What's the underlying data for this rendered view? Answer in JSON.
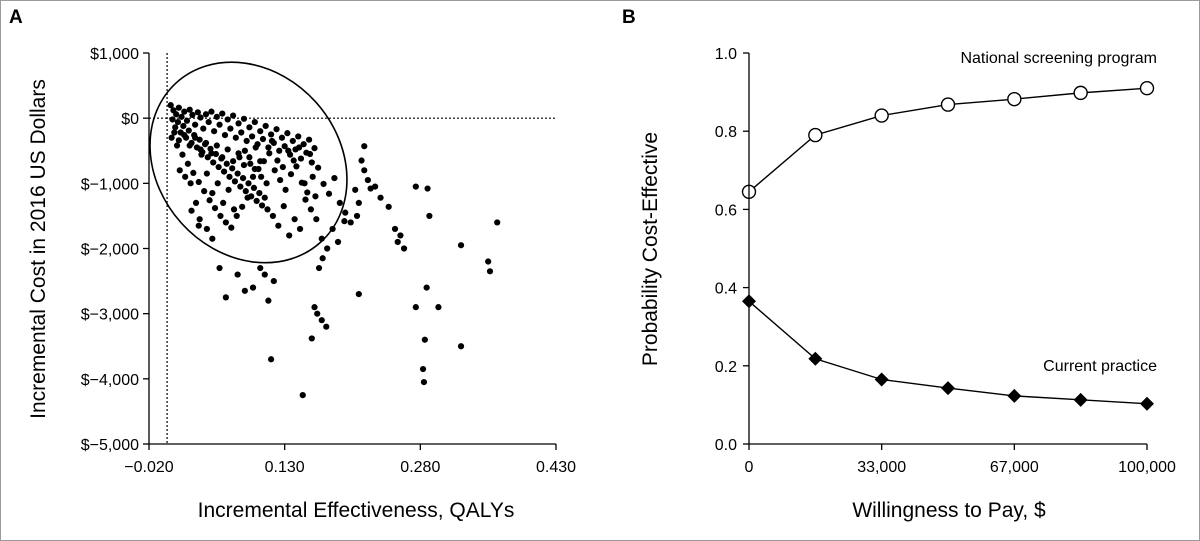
{
  "chart_data": [
    {
      "type": "scatter",
      "panel_label": "A",
      "title": "",
      "xlabel": "Incremental Effectiveness, QALYs",
      "ylabel": "Incremental Cost in 2016 US Dollars",
      "xlim": [
        -0.02,
        0.43
      ],
      "ylim": [
        -5000,
        1000
      ],
      "x_ticks": [
        -0.02,
        0.13,
        0.28,
        0.43
      ],
      "x_tick_labels": [
        "−0.020",
        "0.130",
        "0.280",
        "0.430"
      ],
      "y_ticks": [
        1000,
        0,
        -1000,
        -2000,
        -3000,
        -4000,
        -5000
      ],
      "y_tick_labels": [
        "$1,000",
        "$0",
        "$−1,000",
        "$−2,000",
        "$−3,000",
        "$−4,000",
        "$−5,000"
      ],
      "reference_lines": {
        "x": 0,
        "y": 0,
        "style": "dotted"
      },
      "confidence_ellipse": {
        "center": [
          0.09,
          -680
        ],
        "semi_axis_x": 0.1,
        "semi_axis_y": 1650,
        "note": "tilted 95% ellipse around the point cloud"
      },
      "points": [
        [
          0.004,
          200
        ],
        [
          0.007,
          120
        ],
        [
          0.01,
          60
        ],
        [
          0.013,
          160
        ],
        [
          0.016,
          20
        ],
        [
          0.019,
          100
        ],
        [
          0.022,
          -40
        ],
        [
          0.025,
          130
        ],
        [
          0.028,
          50
        ],
        [
          0.031,
          -100
        ],
        [
          0.034,
          90
        ],
        [
          0.037,
          10
        ],
        [
          0.04,
          -160
        ],
        [
          0.043,
          60
        ],
        [
          0.046,
          -60
        ],
        [
          0.049,
          100
        ],
        [
          0.052,
          -200
        ],
        [
          0.055,
          20
        ],
        [
          0.058,
          -100
        ],
        [
          0.061,
          70
        ],
        [
          0.064,
          -260
        ],
        [
          0.067,
          -20
        ],
        [
          0.07,
          -160
        ],
        [
          0.073,
          40
        ],
        [
          0.076,
          -300
        ],
        [
          0.079,
          -80
        ],
        [
          0.082,
          -220
        ],
        [
          0.085,
          -10
        ],
        [
          0.088,
          -350
        ],
        [
          0.091,
          -140
        ],
        [
          0.094,
          -280
        ],
        [
          0.097,
          -60
        ],
        [
          0.1,
          -400
        ],
        [
          0.103,
          -200
        ],
        [
          0.106,
          -320
        ],
        [
          0.109,
          -120
        ],
        [
          0.112,
          -450
        ],
        [
          0.115,
          -250
        ],
        [
          0.118,
          -380
        ],
        [
          0.121,
          -170
        ],
        [
          0.124,
          -500
        ],
        [
          0.127,
          -300
        ],
        [
          0.13,
          -430
        ],
        [
          0.133,
          -230
        ],
        [
          0.136,
          -560
        ],
        [
          0.139,
          -350
        ],
        [
          0.142,
          -480
        ],
        [
          0.145,
          -280
        ],
        [
          0.148,
          -620
        ],
        [
          0.151,
          -400
        ],
        [
          0.154,
          -530
        ],
        [
          0.157,
          -330
        ],
        [
          0.16,
          -680
        ],
        [
          0.163,
          -460
        ],
        [
          0.006,
          -20
        ],
        [
          0.009,
          -140
        ],
        [
          0.012,
          -60
        ],
        [
          0.015,
          -220
        ],
        [
          0.018,
          -120
        ],
        [
          0.021,
          -300
        ],
        [
          0.024,
          -190
        ],
        [
          0.027,
          -380
        ],
        [
          0.03,
          -260
        ],
        [
          0.033,
          -450
        ],
        [
          0.036,
          -330
        ],
        [
          0.039,
          -520
        ],
        [
          0.042,
          -400
        ],
        [
          0.045,
          -600
        ],
        [
          0.048,
          -470
        ],
        [
          0.051,
          -680
        ],
        [
          0.054,
          -550
        ],
        [
          0.057,
          -750
        ],
        [
          0.06,
          -620
        ],
        [
          0.063,
          -820
        ],
        [
          0.066,
          -700
        ],
        [
          0.069,
          -900
        ],
        [
          0.072,
          -770
        ],
        [
          0.075,
          -970
        ],
        [
          0.078,
          -850
        ],
        [
          0.081,
          -1050
        ],
        [
          0.084,
          -920
        ],
        [
          0.087,
          -1120
        ],
        [
          0.09,
          -1000
        ],
        [
          0.093,
          -1200
        ],
        [
          0.096,
          -1070
        ],
        [
          0.099,
          -1270
        ],
        [
          0.102,
          -1150
        ],
        [
          0.105,
          -1340
        ],
        [
          0.108,
          -1220
        ],
        [
          0.111,
          -1400
        ],
        [
          0.011,
          -420
        ],
        [
          0.017,
          -560
        ],
        [
          0.023,
          -700
        ],
        [
          0.029,
          -840
        ],
        [
          0.035,
          -980
        ],
        [
          0.041,
          -1120
        ],
        [
          0.047,
          -1260
        ],
        [
          0.053,
          -1380
        ],
        [
          0.059,
          -1500
        ],
        [
          0.065,
          -1600
        ],
        [
          0.071,
          -1680
        ],
        [
          0.077,
          -1500
        ],
        [
          0.083,
          -1360
        ],
        [
          0.089,
          -1220
        ],
        [
          0.095,
          -900
        ],
        [
          0.101,
          -780
        ],
        [
          0.107,
          -660
        ],
        [
          0.113,
          -540
        ],
        [
          0.119,
          -800
        ],
        [
          0.125,
          -950
        ],
        [
          0.131,
          -1100
        ],
        [
          0.137,
          -860
        ],
        [
          0.143,
          -740
        ],
        [
          0.149,
          -990
        ],
        [
          0.155,
          -1140
        ],
        [
          0.161,
          -900
        ],
        [
          0.167,
          -760
        ],
        [
          0.173,
          -1010
        ],
        [
          0.179,
          -1160
        ],
        [
          0.185,
          -920
        ],
        [
          0.191,
          -1300
        ],
        [
          0.197,
          -1450
        ],
        [
          0.203,
          -1600
        ],
        [
          0.117,
          -1500
        ],
        [
          0.123,
          -1650
        ],
        [
          0.129,
          -1350
        ],
        [
          0.135,
          -1800
        ],
        [
          0.141,
          -1550
        ],
        [
          0.147,
          -1700
        ],
        [
          0.153,
          -1250
        ],
        [
          0.159,
          -1400
        ],
        [
          0.165,
          -1550
        ],
        [
          0.171,
          -1850
        ],
        [
          0.177,
          -2000
        ],
        [
          0.183,
          -1700
        ],
        [
          0.189,
          -1900
        ],
        [
          0.014,
          -800
        ],
        [
          0.02,
          -900
        ],
        [
          0.026,
          -1000
        ],
        [
          0.032,
          -1300
        ],
        [
          0.038,
          -560
        ],
        [
          0.044,
          -850
        ],
        [
          0.05,
          -1150
        ],
        [
          0.056,
          -1000
        ],
        [
          0.062,
          -1300
        ],
        [
          0.068,
          -1100
        ],
        [
          0.074,
          -1400
        ],
        [
          0.08,
          -600
        ],
        [
          0.086,
          -500
        ],
        [
          0.092,
          -700
        ],
        [
          0.098,
          -450
        ],
        [
          0.104,
          -900
        ],
        [
          0.11,
          -1000
        ],
        [
          0.116,
          -350
        ],
        [
          0.122,
          -650
        ],
        [
          0.128,
          -750
        ],
        [
          0.134,
          -500
        ],
        [
          0.14,
          -650
        ],
        [
          0.146,
          -450
        ],
        [
          0.152,
          -1000
        ],
        [
          0.158,
          -550
        ],
        [
          0.164,
          -1200
        ],
        [
          0.005,
          -300
        ],
        [
          0.008,
          -220
        ],
        [
          0.013,
          -340
        ],
        [
          0.019,
          -260
        ],
        [
          0.025,
          -420
        ],
        [
          0.031,
          -300
        ],
        [
          0.037,
          -480
        ],
        [
          0.043,
          -380
        ],
        [
          0.049,
          -540
        ],
        [
          0.055,
          -420
        ],
        [
          0.061,
          -600
        ],
        [
          0.067,
          -480
        ],
        [
          0.073,
          -660
        ],
        [
          0.079,
          -540
        ],
        [
          0.085,
          -720
        ],
        [
          0.091,
          -600
        ],
        [
          0.097,
          -780
        ],
        [
          0.103,
          -660
        ],
        [
          0.218,
          -430
        ],
        [
          0.215,
          -650
        ],
        [
          0.218,
          -800
        ],
        [
          0.222,
          -950
        ],
        [
          0.225,
          -1080
        ],
        [
          0.23,
          -1050
        ],
        [
          0.236,
          -1220
        ],
        [
          0.245,
          -1360
        ],
        [
          0.252,
          -1700
        ],
        [
          0.255,
          -1900
        ],
        [
          0.262,
          -2000
        ],
        [
          0.258,
          -1800
        ],
        [
          0.275,
          -1050
        ],
        [
          0.288,
          -1080
        ],
        [
          0.29,
          -1500
        ],
        [
          0.275,
          -2900
        ],
        [
          0.285,
          -3400
        ],
        [
          0.287,
          -2600
        ],
        [
          0.283,
          -3850
        ],
        [
          0.284,
          -4050
        ],
        [
          0.3,
          -2900
        ],
        [
          0.325,
          -1950
        ],
        [
          0.325,
          -3500
        ],
        [
          0.355,
          -2200
        ],
        [
          0.357,
          -2350
        ],
        [
          0.365,
          -1600
        ],
        [
          0.208,
          -1100
        ],
        [
          0.212,
          -1300
        ],
        [
          0.21,
          -1500
        ],
        [
          0.196,
          -1580
        ],
        [
          0.212,
          -2700
        ],
        [
          0.168,
          -2300
        ],
        [
          0.172,
          -2150
        ],
        [
          0.163,
          -2900
        ],
        [
          0.166,
          -3000
        ],
        [
          0.171,
          -3100
        ],
        [
          0.176,
          -3200
        ],
        [
          0.16,
          -3380
        ],
        [
          0.15,
          -4250
        ],
        [
          0.115,
          -3700
        ],
        [
          0.112,
          -2800
        ],
        [
          0.118,
          -2500
        ],
        [
          0.108,
          -2400
        ],
        [
          0.103,
          -2300
        ],
        [
          0.095,
          -2600
        ],
        [
          0.086,
          -2650
        ],
        [
          0.078,
          -2400
        ],
        [
          0.065,
          -2750
        ],
        [
          0.058,
          -2300
        ],
        [
          0.05,
          -1850
        ],
        [
          0.044,
          -1700
        ],
        [
          0.036,
          -1550
        ],
        [
          0.027,
          -1420
        ],
        [
          0.035,
          -1650
        ]
      ]
    },
    {
      "type": "line",
      "panel_label": "B",
      "title": "",
      "xlabel": "Willingness to Pay, $",
      "ylabel": "Probability Cost-Effective",
      "xlim": [
        0,
        100000
      ],
      "ylim": [
        0,
        1.0
      ],
      "x_ticks": [
        0,
        33333,
        66667,
        100000
      ],
      "x_tick_labels": [
        "0",
        "33,000",
        "67,000",
        "100,000"
      ],
      "y_ticks": [
        0,
        0.2,
        0.4,
        0.6,
        0.8,
        1.0
      ],
      "y_tick_labels": [
        "0.0",
        "0.2",
        "0.4",
        "0.6",
        "0.8",
        "1.0"
      ],
      "x": [
        0,
        16667,
        33333,
        50000,
        66667,
        83333,
        100000
      ],
      "series": [
        {
          "name": "National screening program",
          "marker": "open-circle",
          "values": [
            0.645,
            0.79,
            0.84,
            0.868,
            0.882,
            0.898,
            0.91
          ]
        },
        {
          "name": "Current practice",
          "marker": "filled-diamond",
          "values": [
            0.365,
            0.218,
            0.165,
            0.143,
            0.123,
            0.113,
            0.103
          ]
        }
      ]
    }
  ]
}
